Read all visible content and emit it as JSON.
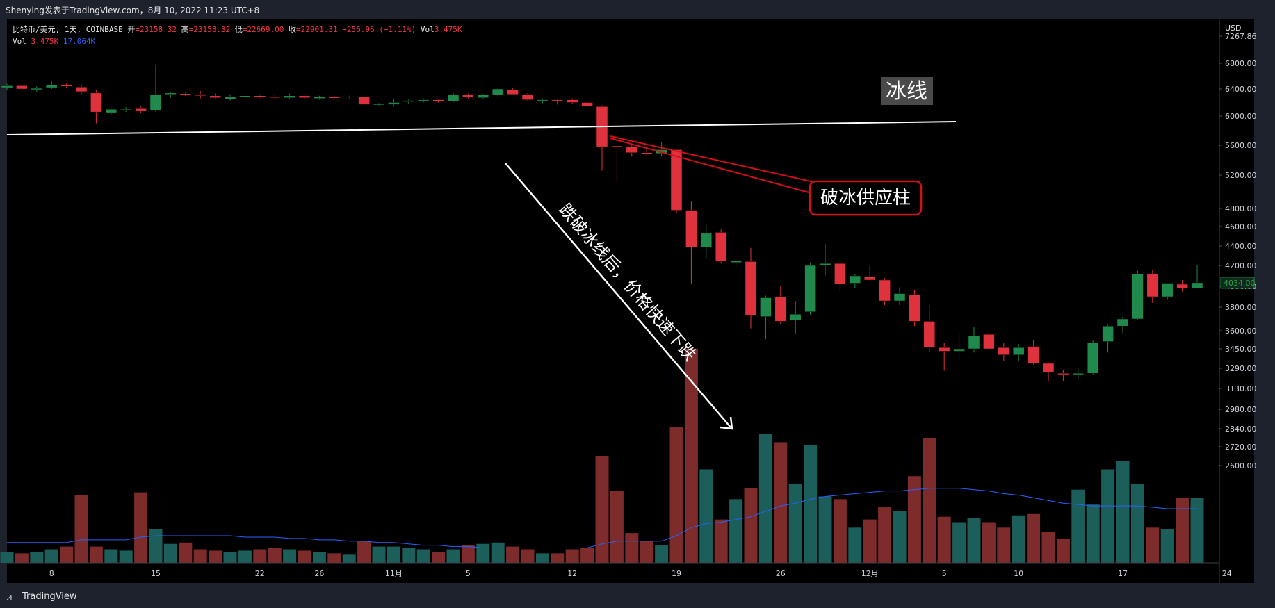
{
  "header": {
    "attribution": "Shenying发表于TradingView.com，8月 10, 2022 11:23 UTC+8"
  },
  "legend": {
    "symbol": "比特币/美元, 1天, COINBASE",
    "open_label": "开",
    "open_value": "=23158.32",
    "high_label": "高",
    "high_value": "=23158.32",
    "low_label": "低",
    "low_value": "=22669.00",
    "close_label": "收",
    "close_value": "=22901.31",
    "change": "−256.96 (−1.11%)",
    "vol_label": "Vol",
    "vol_value": "3.475K",
    "vol_row_label": "Vol",
    "vol_row_value": "3.475K",
    "vol_ma_value": "17.064K"
  },
  "footer": {
    "brand": "TradingView"
  },
  "colors": {
    "up": "#26a69a",
    "up_body": "#1f8a4c",
    "down": "#e0323c",
    "vol_up": "#1b5e5a",
    "vol_down": "#7d2b2b",
    "vol_ma": "#2962ff",
    "annotation_red": "#d40f17",
    "trendline": "#ffffff"
  },
  "chart_data": {
    "type": "candlestick",
    "currency": "USD",
    "y_ticks": [
      7267.86,
      6800,
      6400,
      6000,
      5600,
      5200,
      4800,
      4600,
      4400,
      4200,
      4000,
      3800,
      3600,
      3450,
      3290,
      3130,
      2980,
      2840,
      2720,
      2600
    ],
    "y_tick_labels": [
      "7267.86",
      "6800.00",
      "6400.00",
      "6000.00",
      "5600.00",
      "5200.00",
      "4800.00",
      "4600.00",
      "4400.00",
      "4200.00",
      "4000.00",
      "3800.00",
      "3600.00",
      "3450.00",
      "3290.00",
      "3130.00",
      "2980.00",
      "2840.00",
      "2720.00",
      "2600.00"
    ],
    "last_price": "4034.00",
    "x_labels": [
      "8",
      "15",
      "22",
      "26",
      "11月",
      "5",
      "12",
      "19",
      "26",
      "12月",
      "5",
      "10",
      "17",
      "24"
    ],
    "x_label_index": [
      3,
      10,
      17,
      21,
      26,
      31,
      38,
      45,
      52,
      58,
      63,
      68,
      75,
      82
    ],
    "candles": [
      [
        6420,
        6480,
        6390,
        6450
      ],
      [
        6450,
        6470,
        6380,
        6400
      ],
      [
        6390,
        6440,
        6360,
        6410
      ],
      [
        6420,
        6520,
        6400,
        6460
      ],
      [
        6460,
        6480,
        6420,
        6440
      ],
      [
        6430,
        6470,
        6320,
        6360
      ],
      [
        6340,
        6380,
        5900,
        6060
      ],
      [
        6050,
        6130,
        6020,
        6100
      ],
      [
        6080,
        6130,
        6060,
        6100
      ],
      [
        6110,
        6140,
        6050,
        6070
      ],
      [
        6080,
        6770,
        6060,
        6320
      ],
      [
        6320,
        6360,
        6270,
        6340
      ],
      [
        6330,
        6360,
        6300,
        6320
      ],
      [
        6320,
        6370,
        6260,
        6300
      ],
      [
        6300,
        6330,
        6260,
        6270
      ],
      [
        6250,
        6320,
        6230,
        6290
      ],
      [
        6290,
        6310,
        6260,
        6300
      ],
      [
        6300,
        6320,
        6270,
        6280
      ],
      [
        6290,
        6320,
        6250,
        6270
      ],
      [
        6270,
        6330,
        6250,
        6300
      ],
      [
        6300,
        6320,
        6260,
        6270
      ],
      [
        6260,
        6300,
        6240,
        6280
      ],
      [
        6280,
        6300,
        6250,
        6270
      ],
      [
        6280,
        6300,
        6260,
        6290
      ],
      [
        6290,
        6300,
        6140,
        6170
      ],
      [
        6170,
        6190,
        6150,
        6180
      ],
      [
        6170,
        6250,
        6140,
        6200
      ],
      [
        6210,
        6250,
        6180,
        6230
      ],
      [
        6230,
        6260,
        6200,
        6240
      ],
      [
        6240,
        6250,
        6200,
        6220
      ],
      [
        6220,
        6340,
        6200,
        6310
      ],
      [
        6310,
        6330,
        6260,
        6280
      ],
      [
        6270,
        6330,
        6250,
        6320
      ],
      [
        6310,
        6420,
        6290,
        6400
      ],
      [
        6390,
        6410,
        6310,
        6320
      ],
      [
        6320,
        6340,
        6220,
        6240
      ],
      [
        6230,
        6260,
        6190,
        6240
      ],
      [
        6240,
        6260,
        6170,
        6230
      ],
      [
        6240,
        6260,
        6180,
        6200
      ],
      [
        6200,
        6210,
        6100,
        6150
      ],
      [
        6140,
        6160,
        5260,
        5580
      ],
      [
        5590,
        5620,
        5120,
        5570
      ],
      [
        5580,
        5600,
        5450,
        5500
      ],
      [
        5500,
        5560,
        5460,
        5480
      ],
      [
        5490,
        5640,
        5450,
        5540
      ],
      [
        5540,
        5550,
        4750,
        4780
      ],
      [
        4780,
        4890,
        4020,
        4390
      ],
      [
        4390,
        4620,
        4270,
        4530
      ],
      [
        4540,
        4570,
        4220,
        4240
      ],
      [
        4230,
        4260,
        4180,
        4250
      ],
      [
        4240,
        4380,
        3620,
        3730
      ],
      [
        3720,
        3910,
        3530,
        3890
      ],
      [
        3900,
        4000,
        3660,
        3680
      ],
      [
        3690,
        3860,
        3570,
        3740
      ],
      [
        3760,
        4230,
        3730,
        4200
      ],
      [
        4200,
        4420,
        4100,
        4220
      ],
      [
        4220,
        4260,
        3950,
        4020
      ],
      [
        4030,
        4120,
        3980,
        4100
      ],
      [
        4090,
        4200,
        4050,
        4060
      ],
      [
        4060,
        4080,
        3820,
        3860
      ],
      [
        3860,
        3990,
        3820,
        3930
      ],
      [
        3920,
        3960,
        3640,
        3680
      ],
      [
        3680,
        3820,
        3420,
        3460
      ],
      [
        3460,
        3500,
        3270,
        3430
      ],
      [
        3430,
        3570,
        3370,
        3450
      ],
      [
        3450,
        3630,
        3420,
        3560
      ],
      [
        3570,
        3600,
        3440,
        3450
      ],
      [
        3460,
        3500,
        3350,
        3400
      ],
      [
        3400,
        3490,
        3350,
        3460
      ],
      [
        3470,
        3520,
        3320,
        3330
      ],
      [
        3330,
        3340,
        3190,
        3260
      ],
      [
        3250,
        3280,
        3190,
        3240
      ],
      [
        3240,
        3290,
        3200,
        3250
      ],
      [
        3250,
        3520,
        3240,
        3500
      ],
      [
        3510,
        3650,
        3420,
        3640
      ],
      [
        3640,
        3720,
        3580,
        3700
      ],
      [
        3700,
        4150,
        3690,
        4120
      ],
      [
        4120,
        4160,
        3840,
        3900
      ],
      [
        3900,
        4020,
        3870,
        4030
      ],
      [
        4020,
        4060,
        3950,
        3980
      ],
      [
        3980,
        4200,
        3980,
        4034
      ]
    ],
    "volumes": [
      0.08,
      0.07,
      0.08,
      0.1,
      0.12,
      0.5,
      0.12,
      0.1,
      0.09,
      0.52,
      0.25,
      0.14,
      0.15,
      0.1,
      0.09,
      0.08,
      0.09,
      0.1,
      0.11,
      0.1,
      0.09,
      0.08,
      0.07,
      0.06,
      0.16,
      0.12,
      0.12,
      0.11,
      0.1,
      0.08,
      0.1,
      0.13,
      0.14,
      0.15,
      0.12,
      0.1,
      0.07,
      0.07,
      0.1,
      0.11,
      0.79,
      0.53,
      0.22,
      0.16,
      0.13,
      1.0,
      1.58,
      0.69,
      0.32,
      0.47,
      0.55,
      0.95,
      0.89,
      0.58,
      0.87,
      0.49,
      0.47,
      0.26,
      0.32,
      0.41,
      0.38,
      0.64,
      0.92,
      0.34,
      0.3,
      0.33,
      0.3,
      0.26,
      0.35,
      0.36,
      0.23,
      0.18,
      0.54,
      0.43,
      0.69,
      0.75,
      0.58,
      0.26,
      0.25,
      0.48,
      0.48
    ],
    "volume_ma": [
      0.15,
      0.15,
      0.15,
      0.15,
      0.15,
      0.17,
      0.17,
      0.17,
      0.17,
      0.19,
      0.2,
      0.2,
      0.2,
      0.2,
      0.2,
      0.2,
      0.19,
      0.19,
      0.19,
      0.18,
      0.18,
      0.17,
      0.17,
      0.16,
      0.16,
      0.15,
      0.15,
      0.14,
      0.13,
      0.13,
      0.12,
      0.12,
      0.11,
      0.11,
      0.11,
      0.11,
      0.11,
      0.11,
      0.11,
      0.11,
      0.14,
      0.16,
      0.16,
      0.16,
      0.16,
      0.2,
      0.26,
      0.29,
      0.3,
      0.32,
      0.34,
      0.38,
      0.42,
      0.44,
      0.47,
      0.49,
      0.5,
      0.51,
      0.52,
      0.53,
      0.53,
      0.54,
      0.55,
      0.55,
      0.55,
      0.54,
      0.53,
      0.51,
      0.5,
      0.48,
      0.46,
      0.44,
      0.43,
      0.42,
      0.42,
      0.42,
      0.42,
      0.41,
      0.4,
      0.4,
      0.4
    ]
  },
  "annotations": {
    "ice_line_label": "冰线",
    "supply_bar_label": "破冰供应柱",
    "breakdown_text": "跌破冰线后，价格快速下跌"
  }
}
